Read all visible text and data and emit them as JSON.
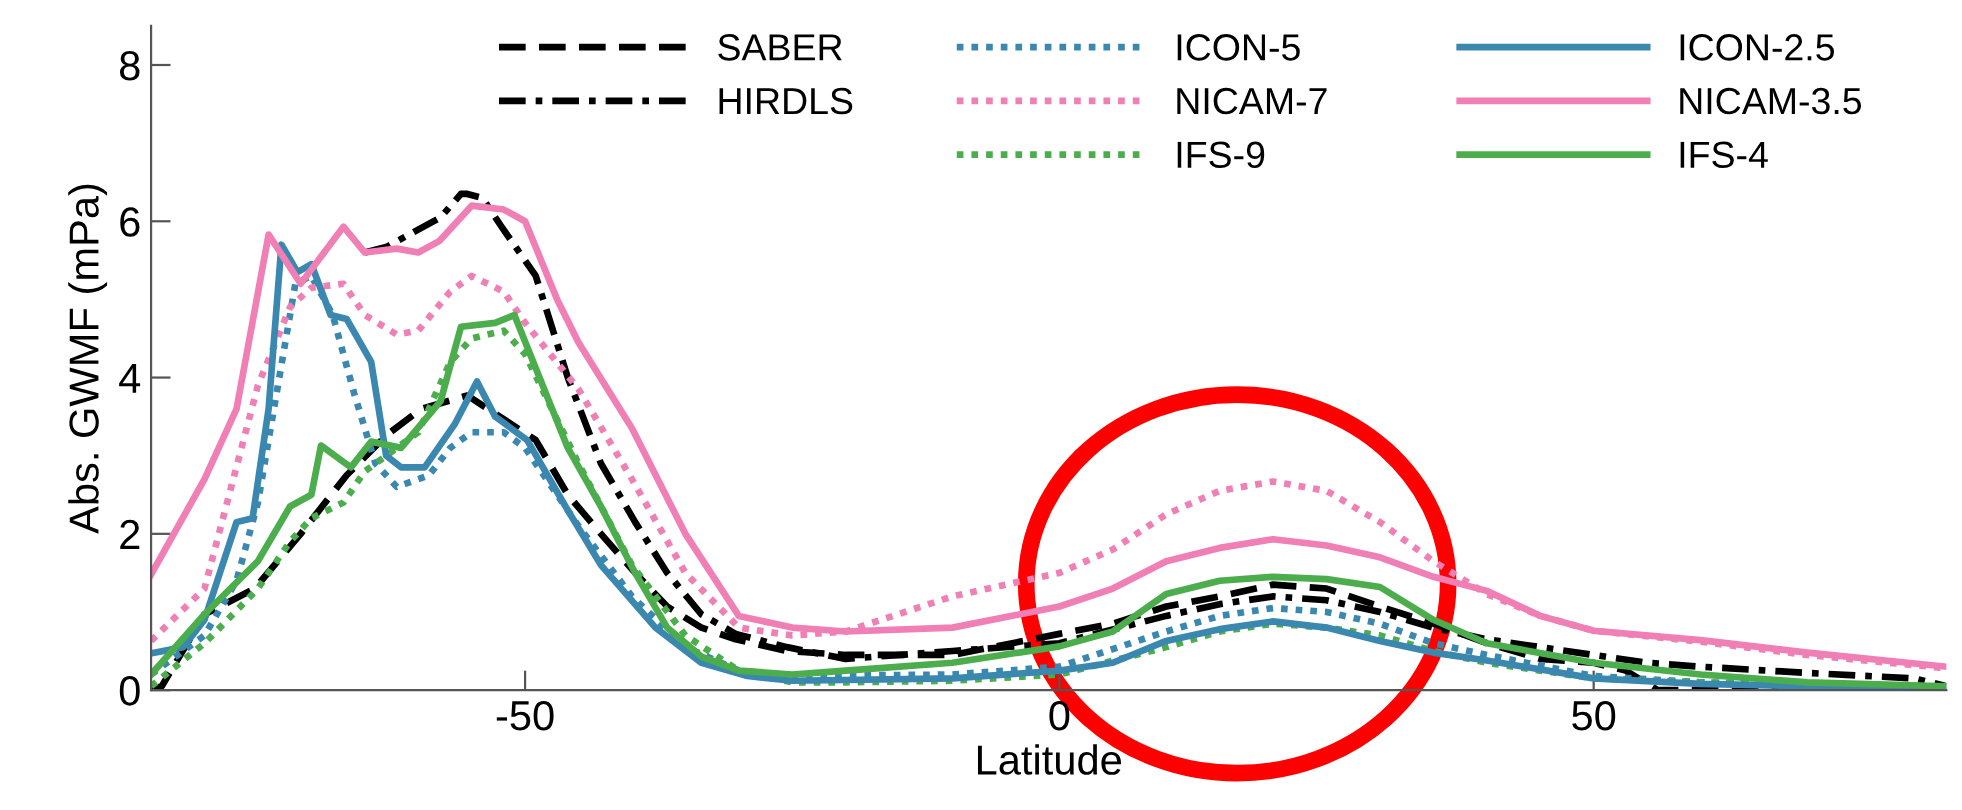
{
  "chart_data": {
    "type": "line",
    "xlabel": "Latitude",
    "ylabel": "Abs. GWMF (mPa)",
    "xlim": [
      -85,
      83
    ],
    "ylim": [
      0,
      8.5
    ],
    "xticks": [
      -50,
      0,
      50
    ],
    "yticks": [
      0,
      2,
      4,
      6,
      8
    ],
    "grid": false,
    "legend": "top",
    "series": [
      {
        "name": "SABER",
        "color": "#000000",
        "line_style": "dashed",
        "x": [
          -85,
          -84,
          -80,
          -75.3,
          -71,
          -66.7,
          -62.9,
          -59.7,
          -55.4,
          -53.5,
          -49,
          -46,
          -42.9,
          -39.7,
          -36.7,
          -33.5,
          -30.3,
          -25.5,
          -20,
          -10,
          0,
          5,
          10,
          15,
          20,
          25,
          30,
          35,
          40,
          45,
          50,
          53,
          56,
          60,
          70,
          83
        ],
        "values": [
          0,
          0.05,
          0.97,
          1.3,
          2.0,
          2.75,
          3.27,
          3.6,
          3.77,
          3.6,
          3.2,
          2.5,
          2.0,
          1.5,
          1.07,
          0.8,
          0.65,
          0.5,
          0.45,
          0.45,
          0.72,
          0.85,
          1.07,
          1.2,
          1.35,
          1.3,
          1.07,
          0.85,
          0.6,
          0.4,
          0.35,
          0.25,
          0,
          0,
          0,
          0
        ]
      },
      {
        "name": "HIRDLS",
        "color": "#000000",
        "line_style": "dashdot",
        "x": [
          -65,
          -63,
          -57.9,
          -56,
          -55.4,
          -54,
          -52.2,
          -49,
          -46,
          -42.9,
          -39.7,
          -36.7,
          -33.5,
          -30.3,
          -25.5,
          -20,
          -10,
          0,
          10,
          15,
          20,
          25,
          30,
          35,
          40,
          45,
          50,
          55,
          60,
          70,
          80,
          83
        ],
        "values": [
          5.6,
          5.67,
          6.05,
          6.35,
          6.35,
          6.3,
          5.93,
          5.3,
          4.0,
          2.9,
          2.15,
          1.5,
          0.97,
          0.72,
          0.55,
          0.4,
          0.5,
          0.6,
          0.95,
          1.1,
          1.2,
          1.15,
          1.0,
          0.8,
          0.65,
          0.55,
          0.45,
          0.35,
          0.3,
          0.22,
          0.15,
          0.05
        ]
      },
      {
        "name": "ICON-5",
        "color": "#3a87b0",
        "line_style": "dotted",
        "x": [
          -85,
          -80,
          -77,
          -75,
          -73,
          -71.5,
          -70,
          -68,
          -66,
          -64,
          -62,
          -59,
          -57,
          -55,
          -52,
          -50,
          -45,
          -40,
          -35,
          -30,
          -25,
          -10,
          0,
          10,
          15,
          20,
          25,
          30,
          35,
          40,
          50,
          60,
          83
        ],
        "values": [
          0.2,
          0.7,
          1.4,
          2.4,
          4.0,
          5.2,
          5.3,
          4.8,
          3.8,
          2.9,
          2.6,
          2.75,
          3.1,
          3.3,
          3.3,
          3.1,
          2.1,
          1.2,
          0.55,
          0.25,
          0.18,
          0.2,
          0.3,
          0.75,
          0.95,
          1.05,
          1.0,
          0.85,
          0.6,
          0.45,
          0.18,
          0.1,
          0.02
        ]
      },
      {
        "name": "NICAM-7",
        "color": "#ef7fb5",
        "line_style": "dotted",
        "x": [
          -85,
          -80,
          -75,
          -72,
          -70,
          -67,
          -65,
          -62,
          -60,
          -57,
          -55,
          -52,
          -50,
          -45,
          -40,
          -35,
          -30,
          -25,
          -20,
          -10,
          0,
          5,
          10,
          15,
          20,
          25,
          30,
          35,
          40,
          45,
          50,
          60,
          70,
          83
        ],
        "values": [
          0.63,
          1.3,
          3.9,
          4.9,
          5.15,
          5.2,
          4.8,
          4.55,
          4.6,
          5.1,
          5.3,
          5.1,
          4.7,
          3.85,
          2.7,
          1.5,
          0.8,
          0.7,
          0.75,
          1.2,
          1.5,
          1.8,
          2.25,
          2.55,
          2.67,
          2.55,
          2.15,
          1.65,
          1.23,
          0.95,
          0.76,
          0.62,
          0.45,
          0.28
        ]
      },
      {
        "name": "IFS-9",
        "color": "#4cad4c",
        "line_style": "dotted",
        "x": [
          -85,
          -80,
          -75,
          -72,
          -70,
          -67,
          -65,
          -62,
          -60,
          -57,
          -55,
          -52,
          -50,
          -45,
          -40,
          -35,
          -30,
          -25,
          -20,
          -10,
          0,
          10,
          15,
          20,
          25,
          30,
          35,
          40,
          50,
          60,
          83
        ],
        "values": [
          0.05,
          0.6,
          1.3,
          1.9,
          2.2,
          2.4,
          2.8,
          3.1,
          3.3,
          4.2,
          4.5,
          4.6,
          4.3,
          2.9,
          1.6,
          0.7,
          0.25,
          0.1,
          0.1,
          0.12,
          0.2,
          0.55,
          0.75,
          0.85,
          0.8,
          0.7,
          0.5,
          0.35,
          0.15,
          0.1,
          0.02
        ]
      },
      {
        "name": "ICON-2.5",
        "color": "#3a87b0",
        "line_style": "solid",
        "x": [
          -85,
          -82,
          -80,
          -77,
          -75.5,
          -74,
          -72.8,
          -71.3,
          -70,
          -68.2,
          -66.7,
          -64.4,
          -63,
          -61.6,
          -59.4,
          -56.6,
          -54.5,
          -52.8,
          -49.8,
          -46,
          -42.9,
          -37.8,
          -33.5,
          -29.2,
          -25,
          -10,
          0,
          5,
          10,
          15,
          20,
          25,
          30,
          35,
          40,
          50,
          60,
          70,
          83
        ],
        "values": [
          0.47,
          0.55,
          0.9,
          2.15,
          2.2,
          3.6,
          5.7,
          5.35,
          5.45,
          4.8,
          4.75,
          4.2,
          3.0,
          2.85,
          2.85,
          3.4,
          3.95,
          3.5,
          3.2,
          2.3,
          1.6,
          0.8,
          0.35,
          0.18,
          0.12,
          0.15,
          0.25,
          0.35,
          0.63,
          0.78,
          0.88,
          0.8,
          0.63,
          0.48,
          0.38,
          0.15,
          0.08,
          0.05,
          0
        ]
      },
      {
        "name": "NICAM-3.5",
        "color": "#ef7fb5",
        "line_style": "solid",
        "x": [
          -85,
          -80,
          -77,
          -74,
          -71,
          -67,
          -65,
          -62,
          -60,
          -58,
          -55,
          -52,
          -50,
          -47,
          -45,
          -40,
          -35,
          -30,
          -25,
          -20,
          -10,
          0,
          5,
          10,
          15,
          20,
          25,
          30,
          35,
          40,
          45,
          50,
          60,
          70,
          83
        ],
        "values": [
          1.48,
          2.7,
          3.6,
          5.83,
          5.2,
          5.93,
          5.6,
          5.65,
          5.6,
          5.75,
          6.2,
          6.15,
          6.0,
          5.0,
          4.45,
          3.35,
          2.0,
          0.95,
          0.8,
          0.75,
          0.8,
          1.07,
          1.3,
          1.65,
          1.82,
          1.93,
          1.85,
          1.7,
          1.45,
          1.27,
          0.95,
          0.76,
          0.64,
          0.48,
          0.3
        ]
      },
      {
        "name": "IFS-4",
        "color": "#4cad4c",
        "line_style": "solid",
        "x": [
          -85,
          -80,
          -75,
          -72,
          -70,
          -69.1,
          -66.3,
          -64.4,
          -61.6,
          -57.9,
          -56,
          -52.8,
          -51,
          -46,
          -42.9,
          -39.7,
          -36.7,
          -33.5,
          -30,
          -25,
          -20,
          -10,
          0,
          5,
          10,
          15,
          20,
          25,
          30,
          35,
          40,
          50,
          60,
          70,
          83
        ],
        "values": [
          0.2,
          0.97,
          1.65,
          2.35,
          2.5,
          3.13,
          2.85,
          3.18,
          3.1,
          3.7,
          4.65,
          4.7,
          4.8,
          3.1,
          2.35,
          1.5,
          0.8,
          0.43,
          0.25,
          0.2,
          0.25,
          0.35,
          0.56,
          0.75,
          1.23,
          1.4,
          1.45,
          1.42,
          1.32,
          0.9,
          0.6,
          0.35,
          0.2,
          0.1,
          0.05
        ]
      }
    ]
  }
}
